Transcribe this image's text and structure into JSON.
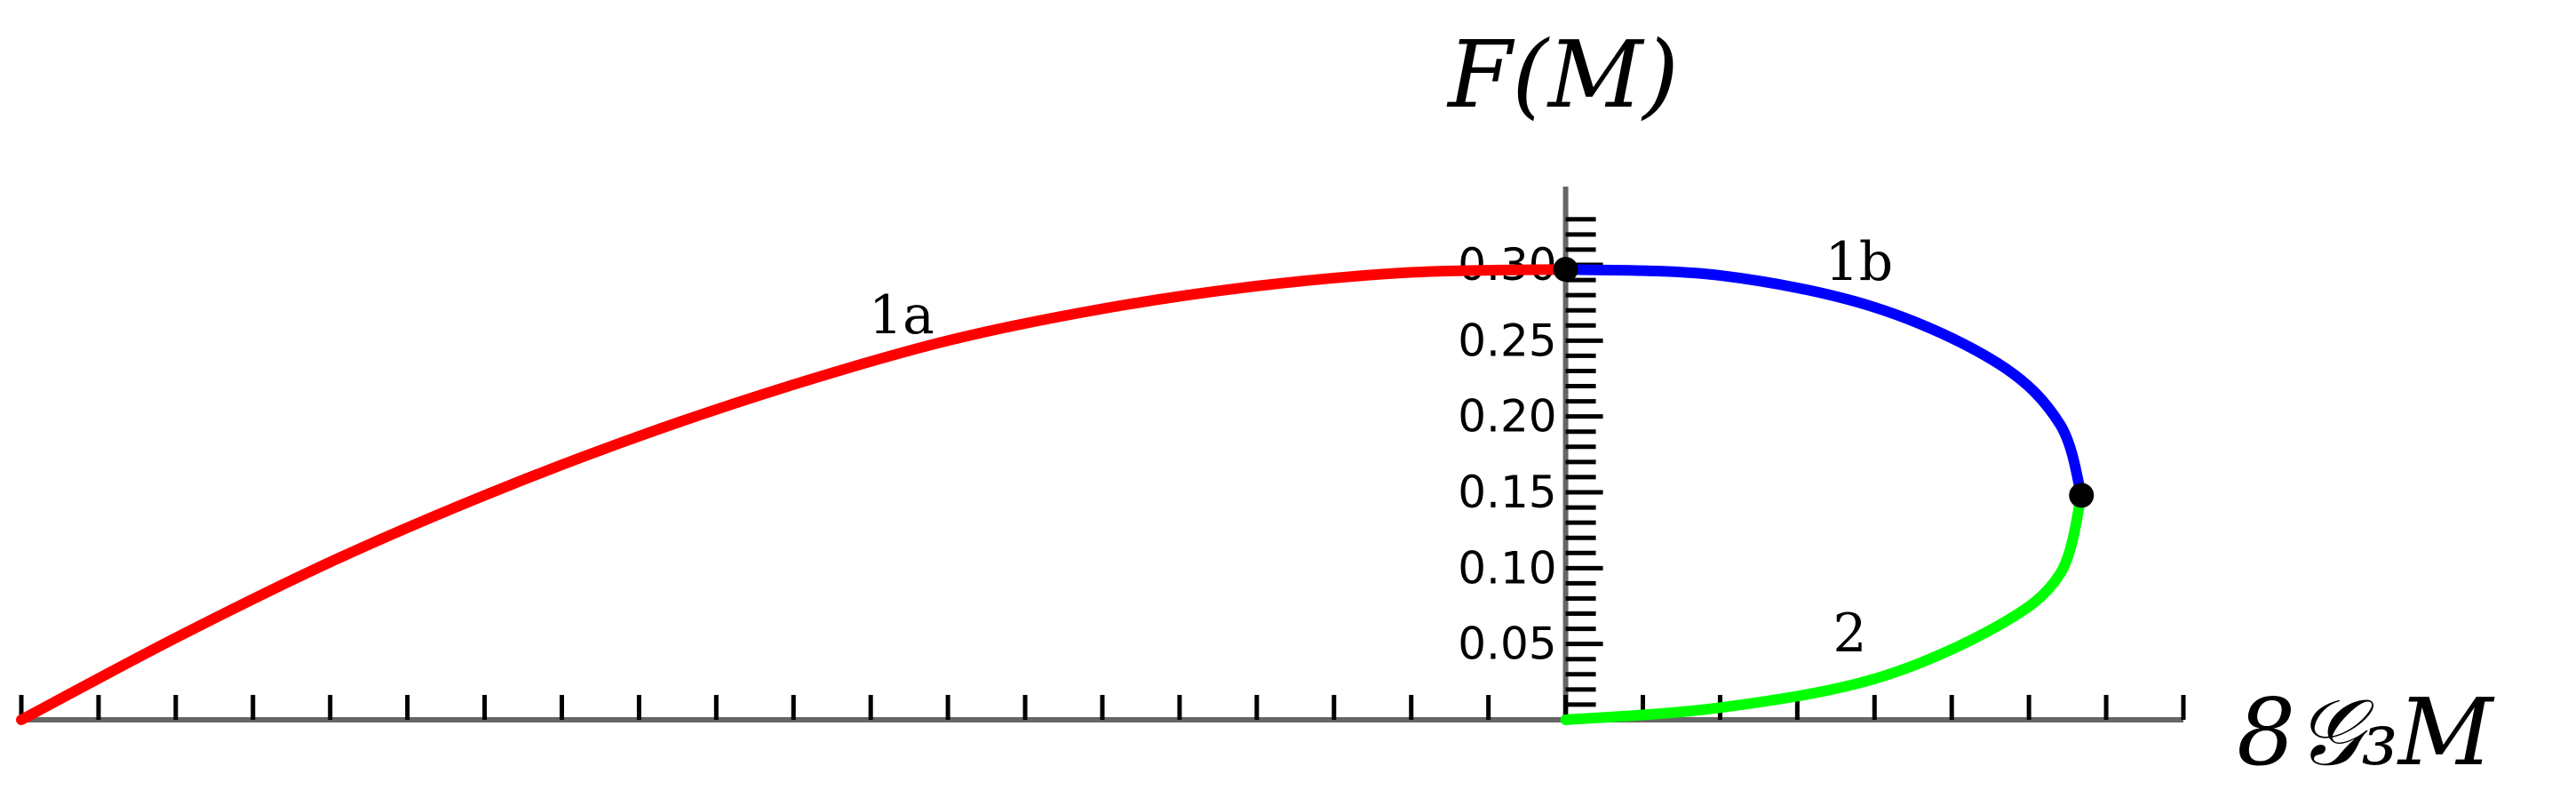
{
  "chart_data": {
    "type": "line",
    "title": "",
    "ylabel": "F(M)",
    "xlabel": "8𝒢₃M",
    "xlim": [
      -1.0,
      0.4
    ],
    "ylim": [
      0.0,
      0.3
    ],
    "yticks": [
      0.05,
      0.1,
      0.15,
      0.2,
      0.25,
      0.3
    ],
    "ytick_labels": [
      "0.05",
      "0.10",
      "0.15",
      "0.20",
      "0.25",
      "0.30"
    ],
    "grid": false,
    "series": [
      {
        "name": "1a",
        "color": "#ff0000",
        "x": [
          -1.0,
          -0.9,
          -0.8,
          -0.7,
          -0.6,
          -0.5,
          -0.4,
          -0.3,
          -0.2,
          -0.1,
          0.0
        ],
        "y": [
          0.0,
          0.054,
          0.104,
          0.148,
          0.187,
          0.221,
          0.25,
          0.271,
          0.286,
          0.295,
          0.297
        ]
      },
      {
        "name": "1b",
        "color": "#0000ff",
        "x": [
          0.0,
          0.1,
          0.2,
          0.28,
          0.32,
          0.334
        ],
        "y": [
          0.297,
          0.293,
          0.272,
          0.235,
          0.195,
          0.148
        ]
      },
      {
        "name": "2",
        "color": "#00ff00",
        "x": [
          0.334,
          0.32,
          0.28,
          0.2,
          0.1,
          0.0
        ],
        "y": [
          0.148,
          0.096,
          0.062,
          0.027,
          0.008,
          0.0
        ]
      }
    ],
    "points": [
      {
        "x": 0.0,
        "y": 0.297
      },
      {
        "x": 0.334,
        "y": 0.148
      }
    ]
  }
}
